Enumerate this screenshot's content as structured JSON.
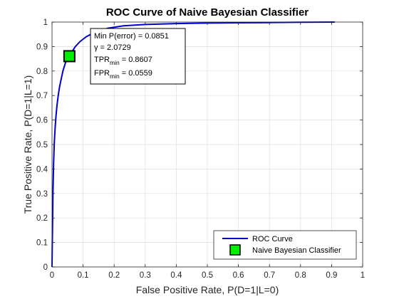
{
  "chart_data": {
    "type": "line",
    "title": "ROC Curve of Naive Bayesian Classifier",
    "xlabel": "False Positive Rate, P(D=1|L=0)",
    "ylabel": "True Positive Rate, P(D=1|L=1)",
    "xlim": [
      0,
      1
    ],
    "ylim": [
      0,
      1
    ],
    "xticks": [
      "0",
      "0.1",
      "0.2",
      "0.3",
      "0.4",
      "0.5",
      "0.6",
      "0.7",
      "0.8",
      "0.9",
      "1"
    ],
    "yticks": [
      "0",
      "0.1",
      "0.2",
      "0.3",
      "0.4",
      "0.5",
      "0.6",
      "0.7",
      "0.8",
      "0.9",
      "1"
    ],
    "grid": true,
    "legend_position": "bottom-right",
    "series": [
      {
        "name": "ROC Curve",
        "color": "#0000cc",
        "x": [
          0,
          0.001,
          0.002,
          0.003,
          0.005,
          0.007,
          0.01,
          0.013,
          0.016,
          0.02,
          0.025,
          0.03,
          0.035,
          0.04,
          0.045,
          0.05,
          0.056,
          0.065,
          0.075,
          0.09,
          0.11,
          0.14,
          0.18,
          0.23,
          0.3,
          0.4,
          0.5,
          0.6,
          0.7,
          0.8,
          0.91
        ],
        "y": [
          0,
          0.1,
          0.2,
          0.3,
          0.42,
          0.5,
          0.57,
          0.62,
          0.66,
          0.7,
          0.74,
          0.77,
          0.8,
          0.82,
          0.84,
          0.855,
          0.861,
          0.88,
          0.9,
          0.92,
          0.94,
          0.96,
          0.975,
          0.985,
          0.99,
          0.994,
          0.996,
          0.997,
          0.998,
          0.999,
          1.0
        ]
      },
      {
        "name": "Naive Bayesian Classifier",
        "type": "scatter",
        "color": "#00ee00",
        "x": [
          0.0559
        ],
        "y": [
          0.8607
        ]
      }
    ],
    "annotation": {
      "line1": "Min P(error) = 0.0851",
      "gamma_symbol": "γ",
      "gamma_text": " = 2.0729",
      "tpr_main": "TPR",
      "tpr_sub": "min",
      "tpr_val": " = 0.8607",
      "fpr_main": "FPR",
      "fpr_sub": "min",
      "fpr_val": " = 0.0559"
    }
  }
}
